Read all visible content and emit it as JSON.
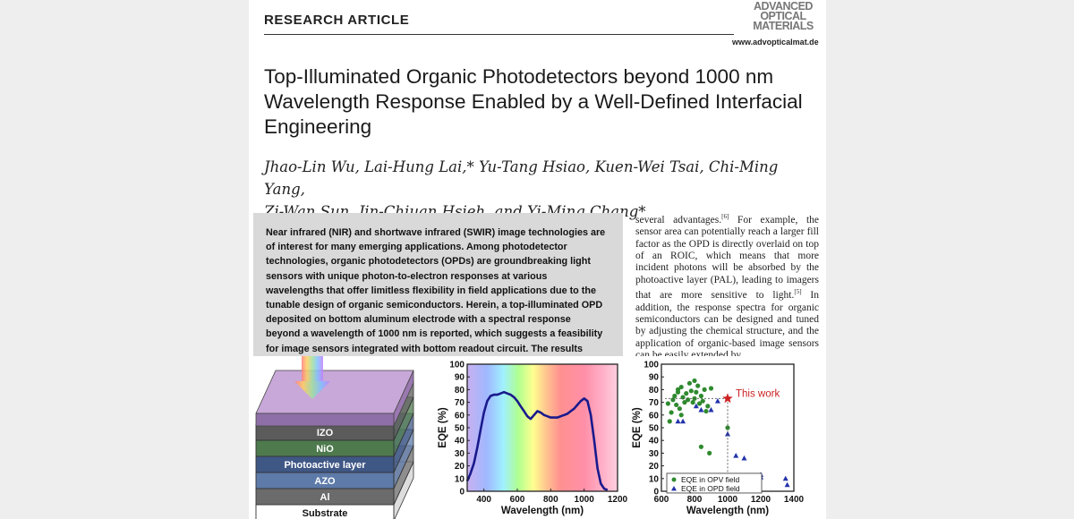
{
  "header": {
    "article_type": "RESEARCH ARTICLE",
    "journal_logo": [
      "ADVANCED",
      "OPTICAL",
      "MATERIALS"
    ],
    "url": "www.advopticalmat.de"
  },
  "title": "Top-Illuminated Organic Photodetectors beyond 1000 nm Wavelength Response Enabled by a Well-Defined Interfacial Engineering",
  "authors_line1": "Jhao-Lin Wu, Lai-Hung Lai,* Yu-Tang Hsiao, Kuen-Wei Tsai, Chi-Ming Yang,",
  "authors_line2": "Zi-Wan Sun, Jin-Chiuan Hsieh, and Yi-Ming Chang*",
  "abstract": "Near infrared (NIR) and shortwave infrared (SWIR) image technologies are of interest for many emerging applications. Among photodetector technologies, organic photodetectors (OPDs) are groundbreaking light sensors with unique photon-to-electron responses at various wavelengths that offer limitless flexibility in field applications due to the tunable design of organic semiconductors. Herein, a top-illuminated OPD deposited on bottom aluminum electrode with a spectral response beyond a wavelength of 1000 nm is reported, which suggests a feasibility for image sensors integrated with bottom readout circuit. The results reveal that a device composed of aluminum-doped zinc",
  "body_column": {
    "p1": "several advantages.",
    "ref1": "[6]",
    "p2": " For example, the sensor area can potentially reach a larger fill factor as the OPD is directly overlaid on top of an ROIC, which means that more incident photons will be absorbed by the photoactive layer (PAL), leading to imagers that are more sensitive to light.",
    "ref2": "[5]",
    "p3": " In addition, the response spectra for organic semiconductors can be designed and tuned by adjusting the chemical structure, and the application of organic-based image sensors can be easily extended by"
  },
  "device_stack": {
    "layers": [
      "IZO",
      "NiO",
      "Photoactive layer",
      "AZO",
      "Al",
      "Substrate"
    ],
    "colors": [
      "#5b5b5b",
      "#4e7a4e",
      "#3f5785",
      "#5d7aa8",
      "#6b6b6b",
      "#ffffff"
    ]
  },
  "chart_data": [
    {
      "type": "line",
      "xlabel": "Wavelength (nm)",
      "ylabel": "EQE (%)",
      "xlim": [
        300,
        1200
      ],
      "ylim": [
        0,
        100
      ],
      "xticks": [
        400,
        600,
        800,
        1000,
        1200
      ],
      "yticks": [
        0,
        10,
        20,
        30,
        40,
        50,
        60,
        70,
        80,
        90,
        100
      ],
      "background": "visible spectrum gradient",
      "series": [
        {
          "color": "#1a1a8c",
          "x": [
            300,
            320,
            340,
            360,
            380,
            400,
            420,
            440,
            460,
            480,
            500,
            520,
            540,
            560,
            580,
            600,
            620,
            640,
            660,
            680,
            700,
            720,
            740,
            760,
            780,
            800,
            820,
            840,
            860,
            880,
            900,
            920,
            940,
            960,
            980,
            1000,
            1020,
            1040,
            1060,
            1080,
            1100,
            1120,
            1140
          ],
          "y": [
            8,
            14,
            22,
            34,
            48,
            62,
            71,
            75,
            76,
            76,
            77,
            78,
            77,
            76,
            74,
            71,
            67,
            63,
            59,
            57,
            60,
            63,
            62,
            60,
            59,
            58,
            58,
            58,
            59,
            60,
            61,
            63,
            65,
            68,
            71,
            73,
            71,
            60,
            40,
            18,
            6,
            2,
            1
          ]
        }
      ]
    },
    {
      "type": "scatter",
      "xlabel": "Wavelength (nm)",
      "ylabel": "EQE (%)",
      "xlim": [
        600,
        1400
      ],
      "ylim": [
        0,
        100
      ],
      "xticks": [
        600,
        800,
        1000,
        1200,
        1400
      ],
      "yticks": [
        0,
        10,
        20,
        30,
        40,
        50,
        60,
        70,
        80,
        90,
        100
      ],
      "legend_position": "bottom-left",
      "annotation": {
        "text": "This work",
        "x": 1000,
        "y": 73,
        "color": "#cc2222"
      },
      "series": [
        {
          "name": "EQE in OPV field",
          "marker": "circle",
          "color": "#2f8a2f",
          "x": [
            640,
            650,
            660,
            670,
            680,
            690,
            700,
            700,
            710,
            720,
            720,
            730,
            740,
            750,
            760,
            770,
            780,
            790,
            800,
            800,
            810,
            820,
            830,
            840,
            850,
            860,
            870,
            880,
            900,
            1000,
            890,
            840
          ],
          "y": [
            69,
            55,
            62,
            72,
            75,
            68,
            78,
            80,
            65,
            82,
            60,
            74,
            70,
            77,
            72,
            85,
            79,
            70,
            87,
            73,
            78,
            83,
            69,
            75,
            71,
            80,
            63,
            67,
            81,
            50,
            30,
            35
          ]
        },
        {
          "name": "EQE in OPD field",
          "marker": "triangle",
          "color": "#2233aa",
          "x": [
            700,
            730,
            810,
            840,
            900,
            940,
            1000,
            1050,
            1100,
            1200,
            1200,
            1350,
            1360
          ],
          "y": [
            55,
            55,
            67,
            64,
            64,
            71,
            45,
            28,
            26,
            13,
            11,
            10,
            5
          ]
        }
      ]
    }
  ]
}
